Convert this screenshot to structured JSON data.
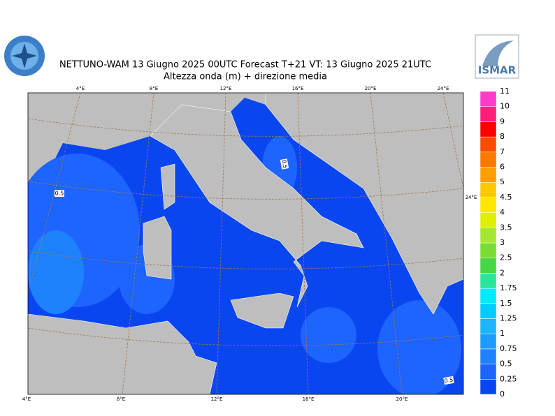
{
  "header": {
    "title": "NETTUNO-WAM  13   Giugno  2025 00UTC Forecast T+21 VT: 13   Giugno  2025 21UTC",
    "subtitle": "Altezza onda (m) + direzione media",
    "logo_right": "ISMAR"
  },
  "map": {
    "top_labels": [
      "4°E",
      "8°E",
      "12°E",
      "16°E",
      "20°E",
      "24°E"
    ],
    "bottom_labels": [
      "4°E",
      "8°E",
      "12°E",
      "16°E",
      "20°E"
    ],
    "right_labels": [
      "24°E"
    ],
    "contour_labels": [
      "0.5",
      "0.5",
      "0.5"
    ]
  },
  "legend": {
    "levels": [
      0,
      0.25,
      0.5,
      0.75,
      1,
      1.25,
      1.5,
      1.75,
      2,
      2.5,
      3,
      3.5,
      4,
      4.5,
      5,
      6,
      7,
      8,
      9,
      10,
      11
    ],
    "colors": [
      "#0a46f0",
      "#1e64ff",
      "#1e82ff",
      "#1e9bff",
      "#1eb4ff",
      "#00cdff",
      "#00eaff",
      "#28e69b",
      "#46d746",
      "#78dc32",
      "#a5e632",
      "#dcf000",
      "#ffe600",
      "#ffc800",
      "#ffa000",
      "#ff7800",
      "#ff4b00",
      "#ff0000",
      "#ff1e78",
      "#ff3cc8"
    ]
  }
}
